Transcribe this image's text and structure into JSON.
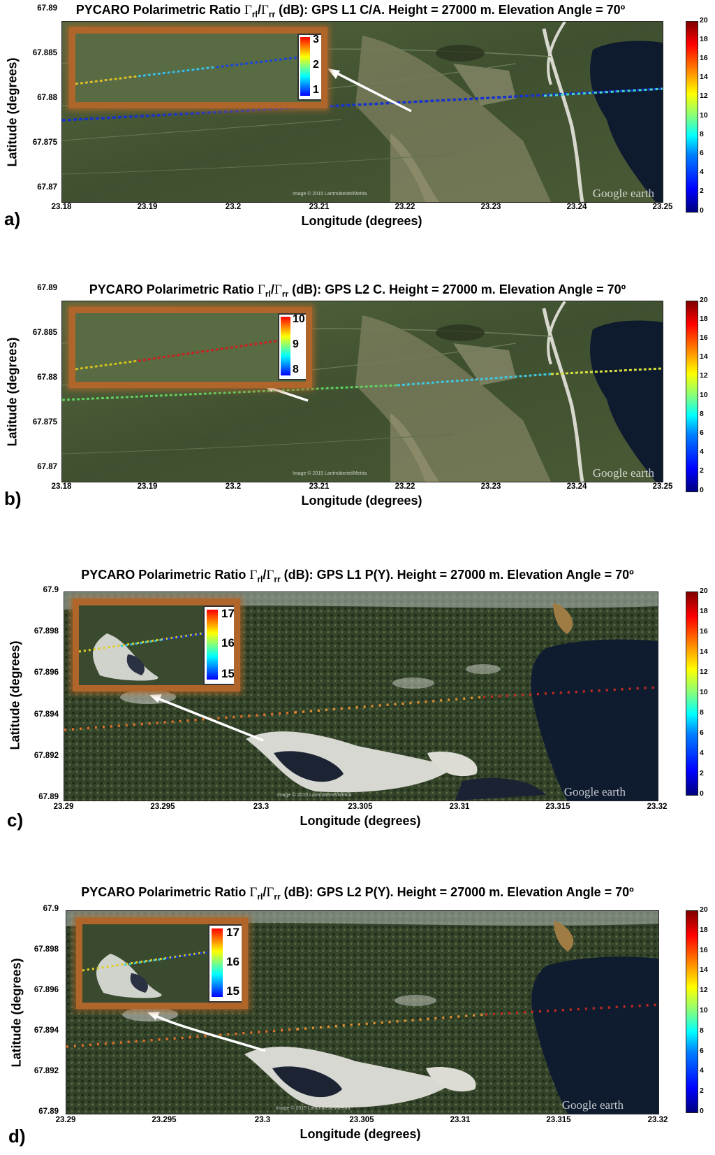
{
  "panels": [
    {
      "id": "a",
      "panel_label": "a)",
      "title_prefix": "PYCARO Polarimetric Ratio ",
      "ratio_num": "Γ",
      "ratio_num_sub": "rl",
      "ratio_sep": "/",
      "ratio_den": "Γ",
      "ratio_den_sub": "rr",
      "title_suffix": " (dB): GPS L1 C/A. Height = 27000 m. Elevation Angle = 70º",
      "xlabel": "Longitude (degrees)",
      "ylabel": "Latitude (degrees)",
      "xticks": [
        "23.18",
        "23.19",
        "23.2",
        "23.21",
        "23.22",
        "23.23",
        "23.24",
        "23.25"
      ],
      "yticks": [
        "67.89",
        "67.885",
        "67.88",
        "67.875",
        "67.87"
      ],
      "colorbar_ticks": [
        "20",
        "18",
        "16",
        "14",
        "12",
        "10",
        "8",
        "6",
        "4",
        "2",
        "0"
      ],
      "inset_ticks": [
        "3",
        "2",
        "1"
      ],
      "watermark": "Google earth",
      "credit": "Image © 2015 Lantmäteriet/Metria"
    },
    {
      "id": "b",
      "panel_label": "b)",
      "title_prefix": "PYCARO Polarimetric Ratio ",
      "ratio_num": "Γ",
      "ratio_num_sub": "rl",
      "ratio_sep": "/",
      "ratio_den": "Γ",
      "ratio_den_sub": "rr",
      "title_suffix": " (dB): GPS L2 C. Height = 27000 m. Elevation Angle = 70º",
      "xlabel": "Longitude (degrees)",
      "ylabel": "Latitude (degrees)",
      "xticks": [
        "23.18",
        "23.19",
        "23.2",
        "23.21",
        "23.22",
        "23.23",
        "23.24",
        "23.25"
      ],
      "yticks": [
        "67.89",
        "67.885",
        "67.88",
        "67.875",
        "67.87"
      ],
      "colorbar_ticks": [
        "20",
        "18",
        "16",
        "14",
        "12",
        "10",
        "8",
        "6",
        "4",
        "2",
        "0"
      ],
      "inset_ticks": [
        "10",
        "9",
        "8"
      ],
      "watermark": "Google earth",
      "credit": "Image © 2015 Lantmäteriet/Metria"
    },
    {
      "id": "c",
      "panel_label": "c)",
      "title_prefix": "PYCARO Polarimetric Ratio ",
      "ratio_num": "Γ",
      "ratio_num_sub": "rl",
      "ratio_sep": "/",
      "ratio_den": "Γ",
      "ratio_den_sub": "rr",
      "title_suffix": " (dB): GPS L1 P(Y). Height = 27000 m. Elevation Angle = 70º",
      "xlabel": "Longitude (degrees)",
      "ylabel": "Latitude (degrees)",
      "xticks": [
        "23.29",
        "23.295",
        "23.3",
        "23.305",
        "23.31",
        "23.315",
        "23.32"
      ],
      "yticks": [
        "67.9",
        "67.898",
        "67.896",
        "67.894",
        "67.892",
        "67.89"
      ],
      "colorbar_ticks": [
        "20",
        "18",
        "16",
        "14",
        "12",
        "10",
        "8",
        "6",
        "4",
        "2",
        "0"
      ],
      "inset_ticks": [
        "17",
        "16",
        "15"
      ],
      "watermark": "Google earth",
      "credit": "Image © 2015 Lantmäteriet/Metria"
    },
    {
      "id": "d",
      "panel_label": "d)",
      "title_prefix": "PYCARO Polarimetric Ratio ",
      "ratio_num": "Γ",
      "ratio_num_sub": "rl",
      "ratio_sep": "/",
      "ratio_den": "Γ",
      "ratio_den_sub": "rr",
      "title_suffix": " (dB): GPS L2 P(Y). Height = 27000 m. Elevation Angle = 70º",
      "xlabel": "Longitude (degrees)",
      "ylabel": "Latitude (degrees)",
      "xticks": [
        "23.29",
        "23.295",
        "23.3",
        "23.305",
        "23.31",
        "23.315",
        "23.32"
      ],
      "yticks": [
        "67.9",
        "67.898",
        "67.896",
        "67.894",
        "67.892",
        "67.89"
      ],
      "colorbar_ticks": [
        "20",
        "18",
        "16",
        "14",
        "12",
        "10",
        "8",
        "6",
        "4",
        "2",
        "0"
      ],
      "inset_ticks": [
        "17",
        "16",
        "15"
      ],
      "watermark": "Google earth",
      "credit": "Image © 2015 Lantmäteriet/Metria"
    }
  ],
  "colors": {
    "inset_frame": "#b0662a",
    "arrow": "#ffffff",
    "forest_dark": "#2e3d24",
    "forest_mid": "#4f6236",
    "clearing": "#9c9a7a",
    "lake": "#0e1a2e"
  }
}
